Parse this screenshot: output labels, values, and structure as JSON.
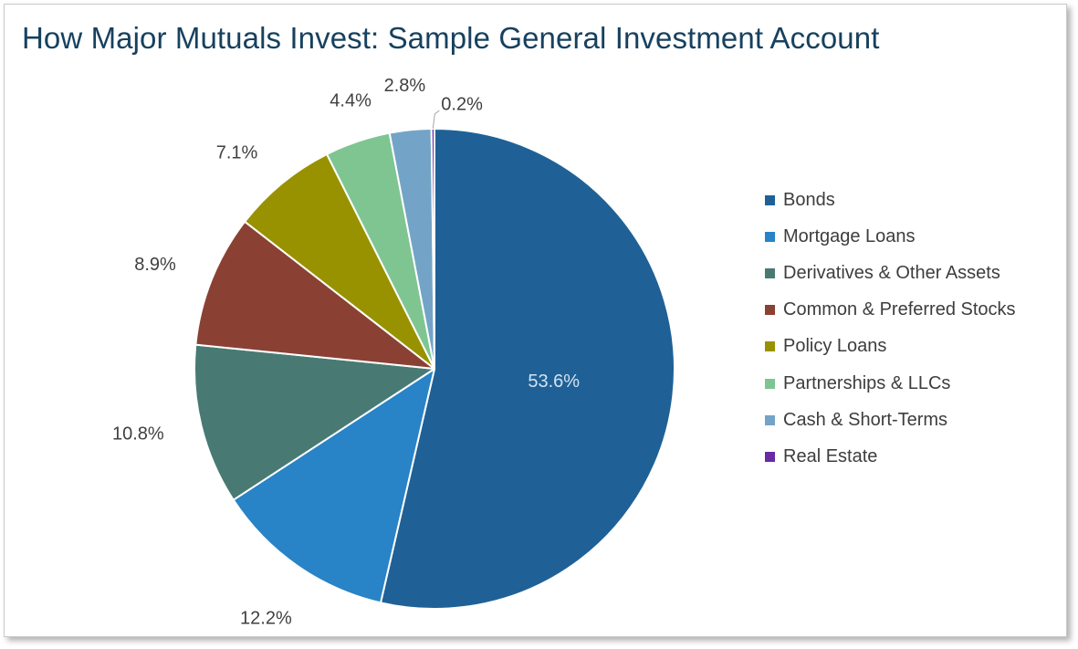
{
  "chart_data": {
    "type": "pie",
    "title": "How Major Mutuals Invest: Sample General Investment Account",
    "legend_position": "right",
    "slices": [
      {
        "name": "Bonds",
        "value": 53.6,
        "label": "53.6%",
        "color": "#1f6196"
      },
      {
        "name": "Mortgage Loans",
        "value": 12.2,
        "label": "12.2%",
        "color": "#2883c7"
      },
      {
        "name": "Derivatives & Other Assets",
        "value": 10.8,
        "label": "10.8%",
        "color": "#487a73"
      },
      {
        "name": "Common & Preferred Stocks",
        "value": 8.9,
        "label": "8.9%",
        "color": "#8a4133"
      },
      {
        "name": "Policy Loans",
        "value": 7.1,
        "label": "7.1%",
        "color": "#989200"
      },
      {
        "name": "Partnerships & LLCs",
        "value": 4.4,
        "label": "4.4%",
        "color": "#7fc592"
      },
      {
        "name": "Cash & Short-Terms",
        "value": 2.8,
        "label": "2.8%",
        "color": "#73a4c7"
      },
      {
        "name": "Real Estate",
        "value": 0.2,
        "label": "0.2%",
        "color": "#6a2aa6"
      }
    ]
  }
}
